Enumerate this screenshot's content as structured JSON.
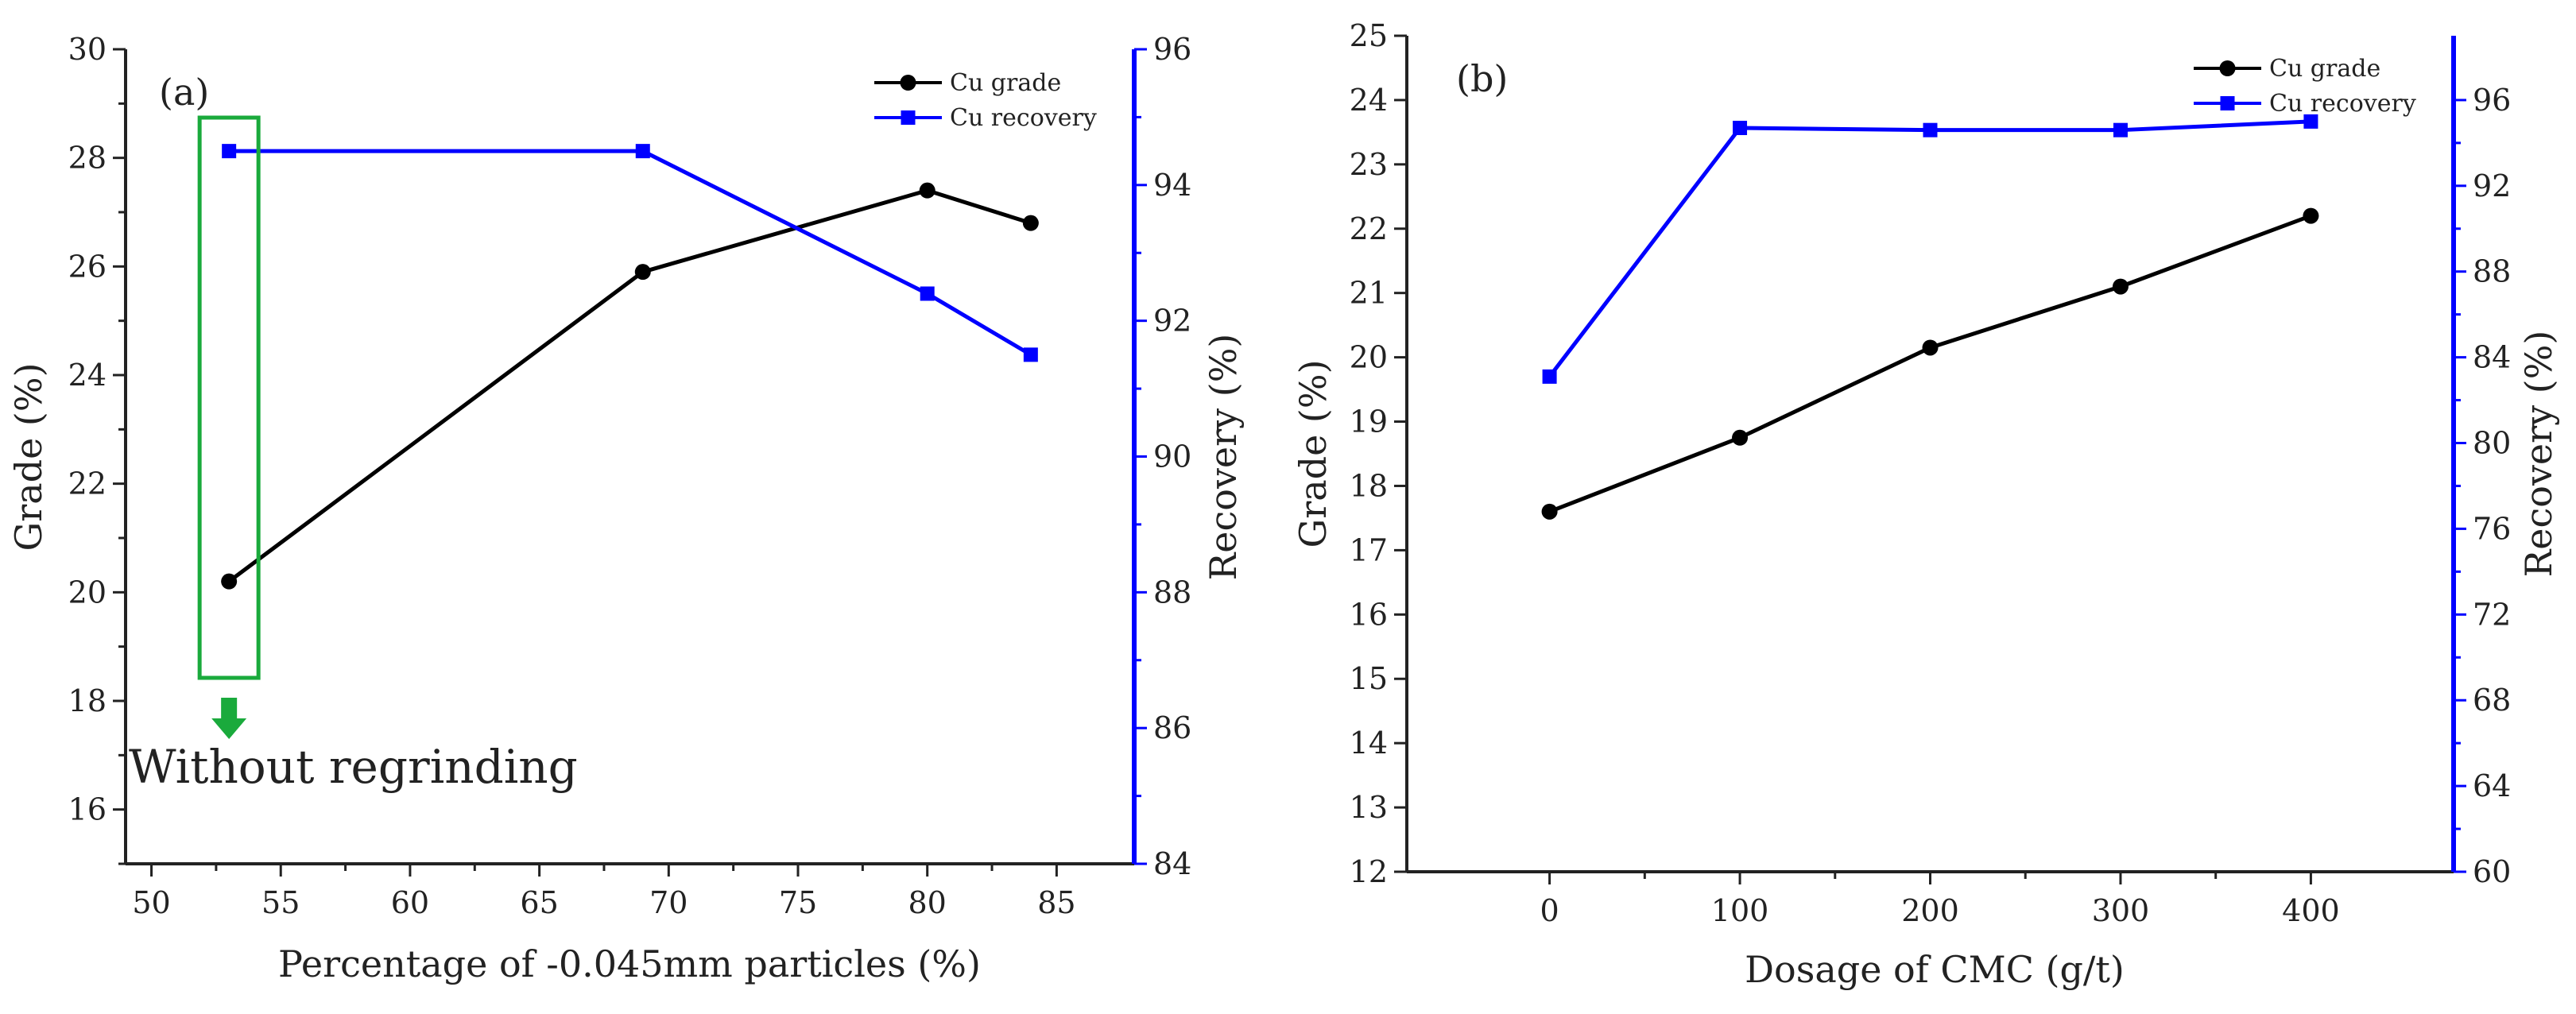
{
  "colors": {
    "grade": "#000000",
    "recovery": "#0000ff",
    "annotation": "#1aaa3c",
    "axis": "#222222"
  },
  "chart_data": [
    {
      "type": "line",
      "panel_label": "(a)",
      "xlabel": "Percentage of -0.045mm particles (%)",
      "ylabel_left": "Grade (%)",
      "ylabel_right": "Recovery (%)",
      "xlim": [
        49,
        88
      ],
      "x_ticks": [
        50,
        55,
        60,
        65,
        70,
        75,
        80,
        85
      ],
      "ylim_left": [
        15,
        30
      ],
      "y_ticks_left": [
        16,
        18,
        20,
        22,
        24,
        26,
        28,
        30
      ],
      "ylim_right": [
        84,
        96
      ],
      "y_ticks_right": [
        84,
        86,
        88,
        90,
        92,
        94,
        96
      ],
      "legend_position": "top-right",
      "series": [
        {
          "name": "Cu grade",
          "axis": "left",
          "marker": "circle",
          "x": [
            53,
            69,
            80,
            84
          ],
          "values": [
            20.2,
            25.9,
            27.4,
            26.8
          ]
        },
        {
          "name": "Cu recovery",
          "axis": "right",
          "marker": "square",
          "x": [
            53,
            69,
            80,
            84
          ],
          "values": [
            94.5,
            94.5,
            92.4,
            91.5
          ]
        }
      ],
      "annotation": {
        "text": "Without regrinding",
        "highlight_x": 53
      }
    },
    {
      "type": "line",
      "panel_label": "(b)",
      "xlabel": "Dosage of CMC (g/t)",
      "ylabel_left": "Grade (%)",
      "ylabel_right": "Recovery (%)",
      "xlim": [
        -75,
        475
      ],
      "x_ticks": [
        0,
        100,
        200,
        300,
        400
      ],
      "ylim_left": [
        12,
        25
      ],
      "y_ticks_left": [
        12,
        13,
        14,
        15,
        16,
        17,
        18,
        19,
        20,
        21,
        22,
        23,
        24,
        25
      ],
      "ylim_right": [
        60,
        99
      ],
      "y_ticks_right": [
        60,
        64,
        68,
        72,
        76,
        80,
        84,
        88,
        92,
        96
      ],
      "legend_position": "top-right",
      "series": [
        {
          "name": "Cu grade",
          "axis": "left",
          "marker": "circle",
          "x": [
            0,
            100,
            200,
            300,
            400
          ],
          "values": [
            17.6,
            18.75,
            20.15,
            21.1,
            22.2
          ]
        },
        {
          "name": "Cu recovery",
          "axis": "right",
          "marker": "square",
          "x": [
            0,
            100,
            200,
            300,
            400
          ],
          "values": [
            83.1,
            94.7,
            94.6,
            94.6,
            95.0
          ]
        }
      ]
    }
  ]
}
